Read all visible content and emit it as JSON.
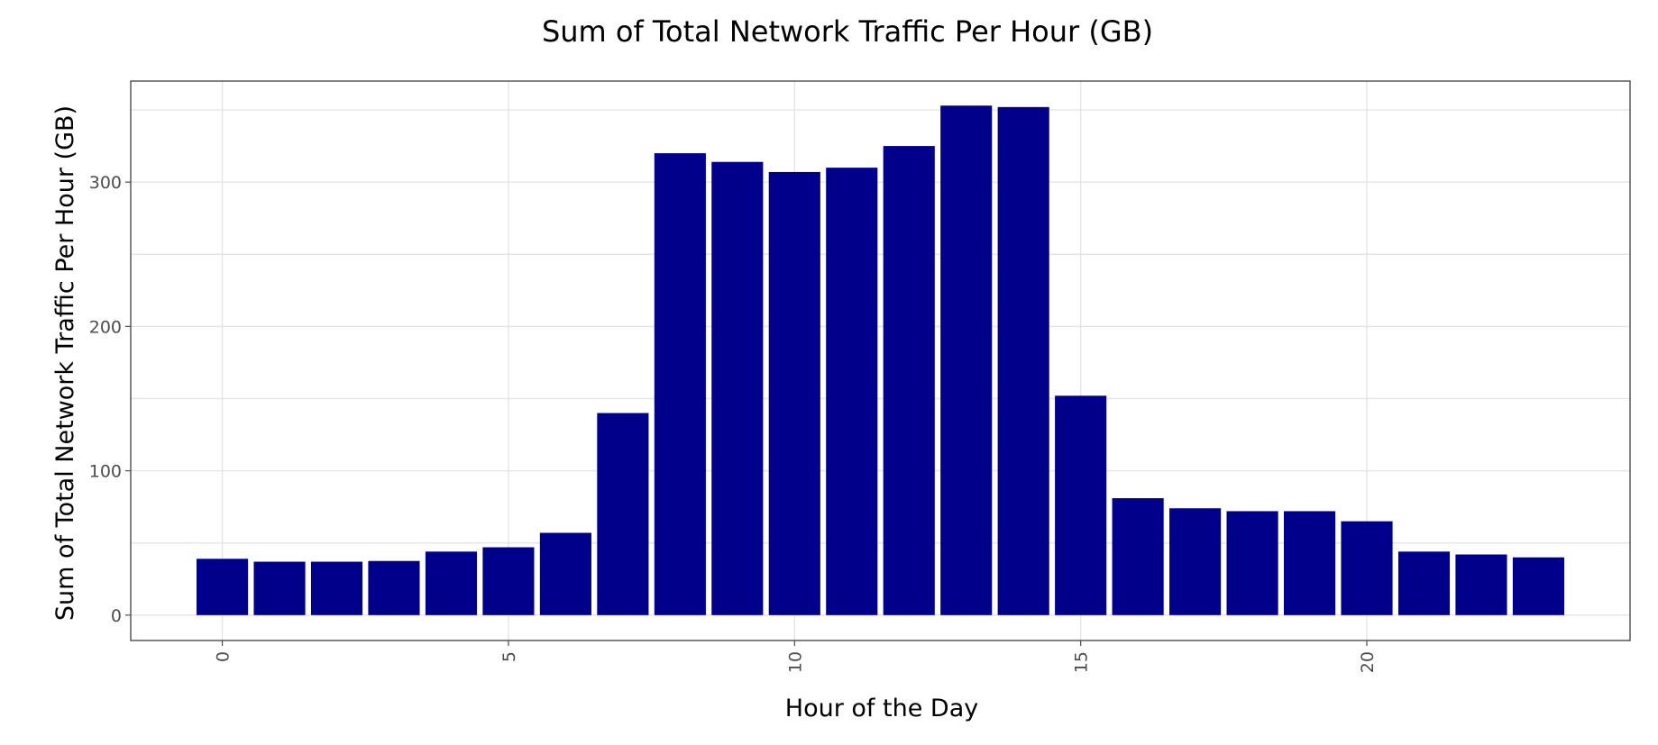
{
  "chart_data": {
    "type": "bar",
    "title": "Sum of Total Network Traffic Per Hour (GB)",
    "xlabel": "Hour of the Day",
    "ylabel": "Sum of Total Network Traffic Per Hour (GB)",
    "x": [
      0,
      1,
      2,
      3,
      4,
      5,
      6,
      7,
      8,
      9,
      10,
      11,
      12,
      13,
      14,
      15,
      16,
      17,
      18,
      19,
      20,
      21,
      22,
      23
    ],
    "values": [
      39,
      37,
      37,
      37.5,
      44,
      47,
      57,
      140,
      320,
      314,
      307,
      310,
      325,
      353,
      352,
      152,
      81,
      74,
      72,
      72,
      65,
      44,
      42,
      40
    ],
    "xlim": [
      -1.6,
      24.6
    ],
    "ylim": [
      -17.6,
      370
    ],
    "xticks": [
      0,
      5,
      10,
      15,
      20
    ],
    "xtick_labels": [
      "0",
      "5",
      "10",
      "15",
      "20"
    ],
    "yticks": [
      0,
      100,
      200,
      300
    ],
    "ytick_labels": [
      "0",
      "100",
      "200",
      "300"
    ],
    "bar_color": "#00008B",
    "grid": true,
    "legend": "none"
  }
}
